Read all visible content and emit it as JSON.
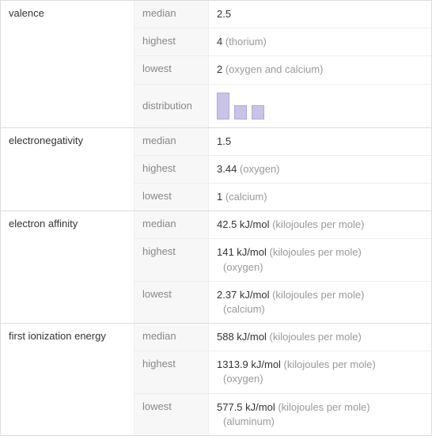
{
  "sections": [
    {
      "name": "valence",
      "rows": [
        {
          "label": "median",
          "value": "2.5",
          "note": ""
        },
        {
          "label": "highest",
          "value": "4",
          "note": " (thorium)"
        },
        {
          "label": "lowest",
          "value": "2",
          "note": " (oxygen and calcium)"
        },
        {
          "label": "distribution",
          "chart": {
            "bars": [
              34,
              18,
              18
            ],
            "bar_color": "#c9c3e6",
            "bar_border": "#b0a8d8",
            "width": 16,
            "gap": 6
          }
        }
      ]
    },
    {
      "name": "electronegativity",
      "rows": [
        {
          "label": "median",
          "value": "1.5",
          "note": ""
        },
        {
          "label": "highest",
          "value": "3.44",
          "note": " (oxygen)"
        },
        {
          "label": "lowest",
          "value": "1",
          "note": " (calcium)"
        }
      ]
    },
    {
      "name": "electron affinity",
      "rows": [
        {
          "label": "median",
          "value": "42.5 kJ/mol",
          "note": " (kilojoules per mole)"
        },
        {
          "label": "highest",
          "value": "141 kJ/mol",
          "note": " (kilojoules per mole)",
          "extra": "(oxygen)"
        },
        {
          "label": "lowest",
          "value": "2.37 kJ/mol",
          "note": " (kilojoules per mole)",
          "extra": "(calcium)"
        }
      ]
    },
    {
      "name": "first ionization energy",
      "rows": [
        {
          "label": "median",
          "value": "588 kJ/mol",
          "note": " (kilojoules per mole)"
        },
        {
          "label": "highest",
          "value": "1313.9 kJ/mol",
          "note": " (kilojoules per mole)",
          "extra": "(oxygen)"
        },
        {
          "label": "lowest",
          "value": "577.5 kJ/mol",
          "note": " (kilojoules per mole)",
          "extra": "(aluminum)"
        }
      ]
    }
  ],
  "colors": {
    "border": "#ddd",
    "inner_border": "#eee",
    "label_bg": "#f7f7f7",
    "label_fg": "#888",
    "value_fg": "#333",
    "note_fg": "#999"
  }
}
